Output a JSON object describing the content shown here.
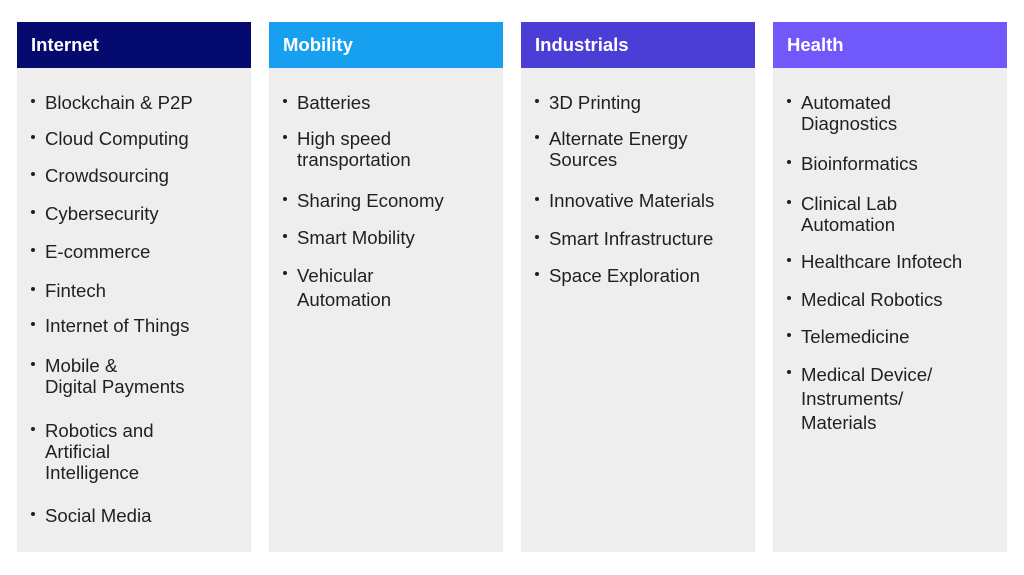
{
  "columns": [
    {
      "title": "Internet",
      "color": "#050a6e",
      "items": [
        "Blockchain & P2P",
        "Cloud Computing",
        "Crowdsourcing",
        "Cybersecurity",
        "E-commerce",
        "Fintech",
        "Internet of Things",
        "Mobile &\nDigital Payments",
        "Robotics and\nArtificial\nIntelligence",
        "Social Media"
      ]
    },
    {
      "title": "Mobility",
      "color": "#17a0f0",
      "items": [
        "Batteries",
        "High speed\ntransportation",
        "Sharing Economy",
        "Smart Mobility",
        "Vehicular\nAutomation"
      ]
    },
    {
      "title": "Industrials",
      "color": "#4a3ed6",
      "items": [
        "3D Printing",
        "Alternate Energy\nSources",
        "Innovative Materials",
        "Smart Infrastructure",
        "Space Exploration"
      ]
    },
    {
      "title": "Health",
      "color": "#7058fb",
      "items": [
        "Automated\nDiagnostics",
        "Bioinformatics",
        "Clinical Lab\nAutomation",
        "Healthcare Infotech",
        "Medical Robotics",
        "Telemedicine",
        "Medical Device/\nInstruments/\nMaterials"
      ]
    }
  ]
}
